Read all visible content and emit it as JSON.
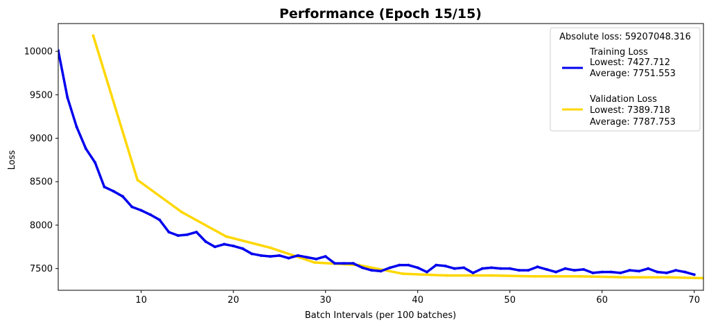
{
  "chart_data": {
    "type": "line",
    "title": "Performance (Epoch 15/15)",
    "xlabel": "Batch Intervals (per 100 batches)",
    "ylabel": "Loss",
    "xlim": [
      1,
      71
    ],
    "ylim": [
      7250,
      10320
    ],
    "xticks": [
      10,
      20,
      30,
      40,
      50,
      60,
      70
    ],
    "yticks": [
      7500,
      8000,
      8500,
      9000,
      9500,
      10000
    ],
    "grid": false,
    "legend": {
      "placement": "top-right",
      "title": "Absolute loss: 59207048.316",
      "entries": [
        {
          "lines": [
            "Training Loss",
            "Lowest: 7427.712",
            "Average: 7751.553"
          ]
        },
        {
          "lines": [
            "Validation Loss",
            "Lowest: 7389.718",
            "Average: 7787.753"
          ]
        }
      ]
    },
    "series": [
      {
        "name": "Training Loss",
        "color": "#0000ee",
        "x": [
          1,
          2,
          3,
          4,
          5,
          6,
          7,
          8,
          9,
          10,
          11,
          12,
          13,
          14,
          15,
          16,
          17,
          18,
          19,
          20,
          21,
          22,
          23,
          24,
          25,
          26,
          27,
          28,
          29,
          30,
          31,
          32,
          33,
          34,
          35,
          36,
          37,
          38,
          39,
          40,
          41,
          42,
          43,
          44,
          45,
          46,
          47,
          48,
          49,
          50,
          51,
          52,
          53,
          54,
          55,
          56,
          57,
          58,
          59,
          60,
          61,
          62,
          63,
          64,
          65,
          66,
          67,
          68,
          69,
          70
        ],
        "values": [
          10010,
          9470,
          9130,
          8880,
          8720,
          8440,
          8390,
          8330,
          8210,
          8170,
          8120,
          8060,
          7920,
          7880,
          7890,
          7920,
          7810,
          7750,
          7780,
          7760,
          7730,
          7670,
          7650,
          7640,
          7650,
          7620,
          7650,
          7630,
          7610,
          7640,
          7560,
          7560,
          7560,
          7510,
          7480,
          7470,
          7510,
          7540,
          7540,
          7510,
          7460,
          7540,
          7530,
          7500,
          7510,
          7450,
          7500,
          7510,
          7500,
          7500,
          7480,
          7480,
          7520,
          7490,
          7460,
          7500,
          7480,
          7490,
          7450,
          7460,
          7460,
          7450,
          7480,
          7470,
          7500,
          7460,
          7450,
          7480,
          7460,
          7430
        ]
      },
      {
        "name": "Validation Loss",
        "color": "#ffd700",
        "x": [
          4.8,
          9.6,
          14.4,
          19.2,
          24,
          28.8,
          33.6,
          38.4,
          43.2,
          48,
          52.8,
          57.6,
          62.4,
          67.2,
          71
        ],
        "values": [
          10180,
          8520,
          8150,
          7870,
          7740,
          7570,
          7540,
          7440,
          7420,
          7420,
          7410,
          7410,
          7400,
          7400,
          7390
        ]
      }
    ]
  }
}
